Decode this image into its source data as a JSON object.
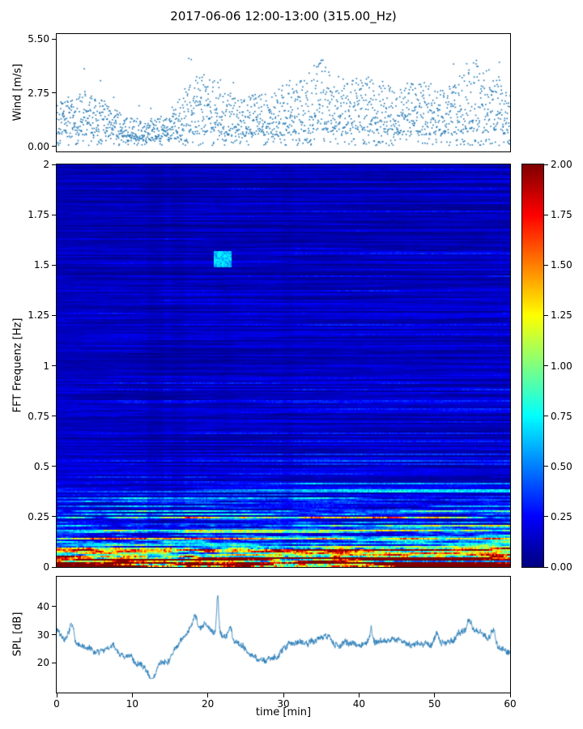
{
  "figure": {
    "title": "2017-06-06 12:00-13:00 (315.00_Hz)",
    "xlabel": "time [min]",
    "xlim": [
      0,
      60
    ],
    "x_ticks": [
      {
        "v": 0,
        "label": "0"
      },
      {
        "v": 10,
        "label": "10"
      },
      {
        "v": 20,
        "label": "20"
      },
      {
        "v": 30,
        "label": "30"
      },
      {
        "v": 40,
        "label": "40"
      },
      {
        "v": 50,
        "label": "50"
      },
      {
        "v": 60,
        "label": "60"
      }
    ]
  },
  "chart_data": [
    {
      "type": "scatter",
      "name": "wind-speed",
      "ylabel": "Wind [m/s]",
      "ylim": [
        -0.25,
        5.75
      ],
      "y_ticks": [
        {
          "v": 0,
          "label": "0.00"
        },
        {
          "v": 2.75,
          "label": "2.75"
        },
        {
          "v": 5.5,
          "label": "5.50"
        }
      ],
      "marker_color": "#1f77b4",
      "description": "Dense point cloud of wind speed over 60 min; calm period near minutes 8-16 (~0.5-1.5 m/s), gusty periods near 17-22, 33-37 and 52-57 min with peaks up to ~5.4 m/s",
      "gen": {
        "seed": 42,
        "n": 2000,
        "envelope": [
          2.6,
          3.0,
          2.8,
          2.0,
          1.4,
          1.4,
          1.6,
          3.6,
          4.1,
          3.0,
          2.7,
          2.9,
          3.4,
          3.8,
          4.8,
          3.6,
          4.0,
          3.6,
          3.0,
          3.6,
          3.6,
          3.4,
          5.0,
          4.0,
          3.4
        ]
      }
    },
    {
      "type": "heatmap",
      "name": "fft-spectrogram",
      "ylabel": "FFT Frequenz [Hz]",
      "ylim": [
        0,
        2
      ],
      "y_ticks": [
        {
          "v": 0,
          "label": "0"
        },
        {
          "v": 0.25,
          "label": "0.25"
        },
        {
          "v": 0.5,
          "label": "0.5"
        },
        {
          "v": 0.75,
          "label": "0.75"
        },
        {
          "v": 1,
          "label": "1"
        },
        {
          "v": 1.25,
          "label": "1.25"
        },
        {
          "v": 1.5,
          "label": "1.5"
        },
        {
          "v": 1.75,
          "label": "1.75"
        },
        {
          "v": 2,
          "label": "2"
        }
      ],
      "colormap": "jet",
      "vmin": 0,
      "vmax": 2,
      "colorbar_ticks": [
        {
          "v": 2,
          "label": "2.00"
        },
        {
          "v": 1.75,
          "label": "1.75"
        },
        {
          "v": 1.5,
          "label": "1.50"
        },
        {
          "v": 1.25,
          "label": "1.25"
        },
        {
          "v": 1,
          "label": "1.00"
        },
        {
          "v": 0.75,
          "label": "0.75"
        },
        {
          "v": 0.5,
          "label": "0.50"
        },
        {
          "v": 0.25,
          "label": "0.25"
        },
        {
          "v": 0,
          "label": "0.00"
        }
      ],
      "description": "Blue background (~0.1-0.3) with horizontal striations; strong energy below 0.25 Hz rising to ~2 (red) at the bottom edge; intermittent cyan/yellow streaks below 0.5 Hz; darker vertical bands near 12-17 min; isolated cyan patch near 1.5 Hz at ~21-23 min",
      "gen": {
        "seed": 1234,
        "rows": 248,
        "cols": 280,
        "dark_bands": [
          [
            12.0,
            14.2,
            0.8
          ],
          [
            15.3,
            17.0,
            0.84
          ],
          [
            21.0,
            23.2,
            0.9
          ],
          [
            29.8,
            31.3,
            0.87
          ]
        ],
        "blip": {
          "t": [
            20.8,
            23.2
          ],
          "f": [
            1.49,
            1.57
          ],
          "value": 0.65
        }
      }
    },
    {
      "type": "line",
      "name": "spl",
      "ylabel": "SPL [dB]",
      "ylim": [
        9.5,
        50.5
      ],
      "y_ticks": [
        {
          "v": 20,
          "label": "20"
        },
        {
          "v": 30,
          "label": "30"
        },
        {
          "v": 40,
          "label": "40"
        }
      ],
      "line_color": "#1f77b4",
      "description": "Noisy sound pressure level trace mostly 18-35 dB; minimum ~15 dB near 12.5 min; narrow spike to ~46 dB near 21 min; broad elevated levels near 17-23 and 52-57 min",
      "gen": {
        "seed": 7,
        "n": 1700,
        "envelope": [
          32,
          27,
          23,
          25,
          21,
          17,
          23,
          31,
          33,
          30,
          26,
          20,
          26,
          29,
          31,
          27,
          27,
          29,
          30,
          26,
          26,
          29,
          33,
          31,
          23
        ],
        "spikes": [
          {
            "t": 2.0,
            "h": 5,
            "w": 0.3
          },
          {
            "t": 12.6,
            "h": -4,
            "w": 0.4
          },
          {
            "t": 18.4,
            "h": 5,
            "w": 0.25
          },
          {
            "t": 21.3,
            "h": 13,
            "w": 0.14
          },
          {
            "t": 23.0,
            "h": 4,
            "w": 0.2
          },
          {
            "t": 41.6,
            "h": 5,
            "w": 0.2
          },
          {
            "t": 50.3,
            "h": 4,
            "w": 0.25
          },
          {
            "t": 54.6,
            "h": 5,
            "w": 0.3
          },
          {
            "t": 57.8,
            "h": 4,
            "w": 0.2
          }
        ]
      }
    }
  ]
}
